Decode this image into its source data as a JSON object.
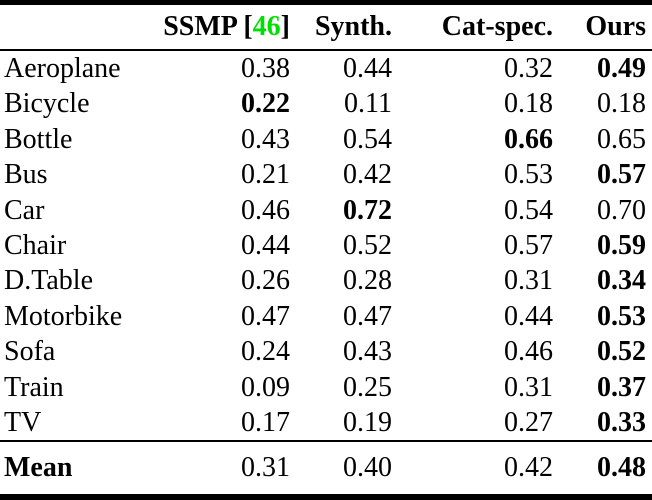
{
  "colors": {
    "citation_green": "#00e000",
    "text": "#000000",
    "rule": "#000000",
    "background": "#ffffff"
  },
  "header": {
    "corner": "",
    "ssmp_prefix": "SSMP [",
    "ssmp_cite": "46",
    "ssmp_suffix": "]",
    "synth": "Synth.",
    "catspec": "Cat-spec.",
    "ours": "Ours"
  },
  "table": {
    "columns": [
      "",
      "SSMP [46]",
      "Synth.",
      "Cat-spec.",
      "Ours"
    ],
    "rows": [
      {
        "label": "Aeroplane",
        "values": [
          "0.38",
          "0.44",
          "0.32",
          "0.49"
        ],
        "bold_value_index": 3
      },
      {
        "label": "Bicycle",
        "values": [
          "0.22",
          "0.11",
          "0.18",
          "0.18"
        ],
        "bold_value_index": 0
      },
      {
        "label": "Bottle",
        "values": [
          "0.43",
          "0.54",
          "0.66",
          "0.65"
        ],
        "bold_value_index": 2
      },
      {
        "label": "Bus",
        "values": [
          "0.21",
          "0.42",
          "0.53",
          "0.57"
        ],
        "bold_value_index": 3
      },
      {
        "label": "Car",
        "values": [
          "0.46",
          "0.72",
          "0.54",
          "0.70"
        ],
        "bold_value_index": 1
      },
      {
        "label": "Chair",
        "values": [
          "0.44",
          "0.52",
          "0.57",
          "0.59"
        ],
        "bold_value_index": 3
      },
      {
        "label": "D.Table",
        "values": [
          "0.26",
          "0.28",
          "0.31",
          "0.34"
        ],
        "bold_value_index": 3
      },
      {
        "label": "Motorbike",
        "values": [
          "0.47",
          "0.47",
          "0.44",
          "0.53"
        ],
        "bold_value_index": 3
      },
      {
        "label": "Sofa",
        "values": [
          "0.24",
          "0.43",
          "0.46",
          "0.52"
        ],
        "bold_value_index": 3
      },
      {
        "label": "Train",
        "values": [
          "0.09",
          "0.25",
          "0.31",
          "0.37"
        ],
        "bold_value_index": 3
      },
      {
        "label": "TV",
        "values": [
          "0.17",
          "0.19",
          "0.27",
          "0.33"
        ],
        "bold_value_index": 3
      }
    ],
    "footer": {
      "label": "Mean",
      "values": [
        "0.31",
        "0.40",
        "0.42",
        "0.48"
      ],
      "bold_value_index": 3
    }
  }
}
